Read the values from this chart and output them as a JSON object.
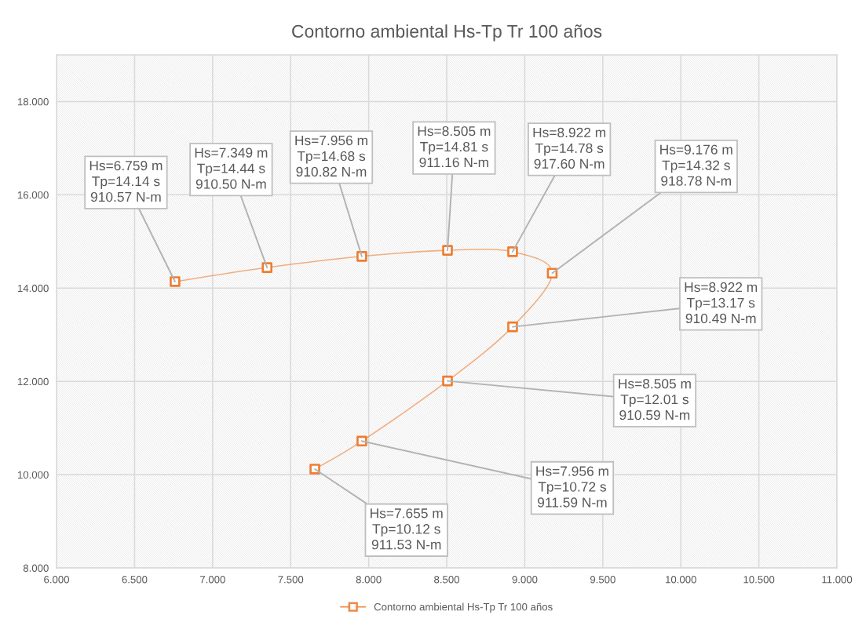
{
  "chart_data": {
    "type": "line",
    "title": "Contorno ambiental Hs-Tp Tr 100 años",
    "x": [
      6.759,
      7.349,
      7.956,
      8.505,
      8.922,
      9.176,
      8.922,
      8.505,
      7.956,
      7.655
    ],
    "series": [
      {
        "name": "Contorno ambiental Hs-Tp Tr 100 años",
        "color": "#ed7d31",
        "values": [
          14.14,
          14.44,
          14.68,
          14.81,
          14.78,
          14.32,
          13.17,
          12.01,
          10.72,
          10.12
        ]
      }
    ],
    "xlim": [
      6,
      11
    ],
    "xticks": [
      {
        "value": 6,
        "label": "6.000"
      },
      {
        "value": 6.5,
        "label": "6.500"
      },
      {
        "value": 7,
        "label": "7.000"
      },
      {
        "value": 7.5,
        "label": "7.500"
      },
      {
        "value": 8,
        "label": "8.000"
      },
      {
        "value": 8.5,
        "label": "8.500"
      },
      {
        "value": 9,
        "label": "9.000"
      },
      {
        "value": 9.5,
        "label": "9.500"
      },
      {
        "value": 10,
        "label": "10.000"
      },
      {
        "value": 10.5,
        "label": "10.500"
      },
      {
        "value": 11,
        "label": "11.000"
      }
    ],
    "ylim": [
      8,
      19
    ],
    "yticks": [
      {
        "value": 8,
        "label": "8.000"
      },
      {
        "value": 10,
        "label": "10.000"
      },
      {
        "value": 12,
        "label": "12.000"
      },
      {
        "value": 14,
        "label": "14.000"
      },
      {
        "value": 16,
        "label": "16.000"
      },
      {
        "value": 18,
        "label": "18.000"
      }
    ],
    "grid": true,
    "legend": "bottom",
    "marker": "square",
    "annotations": [
      {
        "text": "Hs=6.759 m\nTp=14.14 s\n910.57 N-m",
        "x": 6.759,
        "y": 14.14
      },
      {
        "text": "Hs=7.349 m\nTp=14.44 s\n910.50 N-m",
        "x": 7.349,
        "y": 14.44
      },
      {
        "text": "Hs=7.956 m\nTp=14.68 s\n910.82 N-m",
        "x": 7.956,
        "y": 14.68
      },
      {
        "text": "Hs=8.505 m\nTp=14.81 s\n911.16 N-m",
        "x": 8.505,
        "y": 14.81
      },
      {
        "text": "Hs=8.922 m\nTp=14.78 s\n917.60 N-m",
        "x": 8.922,
        "y": 14.78
      },
      {
        "text": "Hs=9.176 m\nTp=14.32 s\n918.78 N-m",
        "x": 9.176,
        "y": 14.32
      },
      {
        "text": "Hs=8.922 m\nTp=13.17 s\n910.49 N-m",
        "x": 8.922,
        "y": 13.17
      },
      {
        "text": "Hs=8.505 m\nTp=12.01 s\n910.59 N-m",
        "x": 8.505,
        "y": 12.01
      },
      {
        "text": "Hs=7.956 m\nTp=10.72 s\n911.59 N-m",
        "x": 7.956,
        "y": 10.72
      },
      {
        "text": "Hs=7.655 m\nTp=10.12 s\n911.53 N-m",
        "x": 7.655,
        "y": 10.12
      }
    ]
  }
}
